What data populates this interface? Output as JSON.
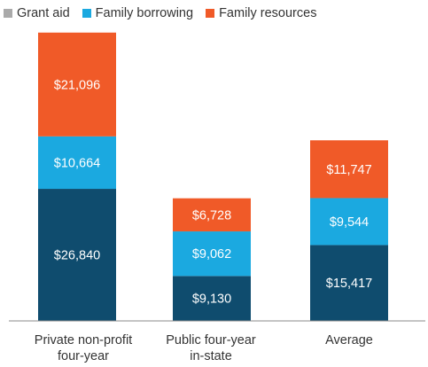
{
  "chart_data": {
    "type": "bar",
    "stacked": true,
    "categories": [
      "Private non-profit four-year",
      "Public four-year in-state",
      "Average"
    ],
    "category_lines": [
      [
        "Private non-profit",
        "four-year"
      ],
      [
        "Public four-year",
        "in-state"
      ],
      [
        "Average"
      ]
    ],
    "series": [
      {
        "name": "Grant aid",
        "color": "#0f4c6e",
        "legend_color": "#aaaaaa",
        "values": [
          26840,
          9130,
          15417
        ],
        "labels": [
          "$26,840",
          "$9,130",
          "$15,417"
        ]
      },
      {
        "name": "Family borrowing",
        "color": "#1ba9e0",
        "legend_color": "#1ba9e0",
        "values": [
          10664,
          9062,
          9544
        ],
        "labels": [
          "$10,664",
          "$9,062",
          "$9,544"
        ]
      },
      {
        "name": "Family resources",
        "color": "#f05a28",
        "legend_color": "#f05a28",
        "values": [
          21096,
          6728,
          11747
        ],
        "labels": [
          "$21,096",
          "$6,728",
          "$11,747"
        ]
      }
    ],
    "title": "",
    "xlabel": "",
    "ylabel": "",
    "ylim": [
      0,
      60000
    ],
    "grid": false,
    "legend_position": "top-left"
  }
}
